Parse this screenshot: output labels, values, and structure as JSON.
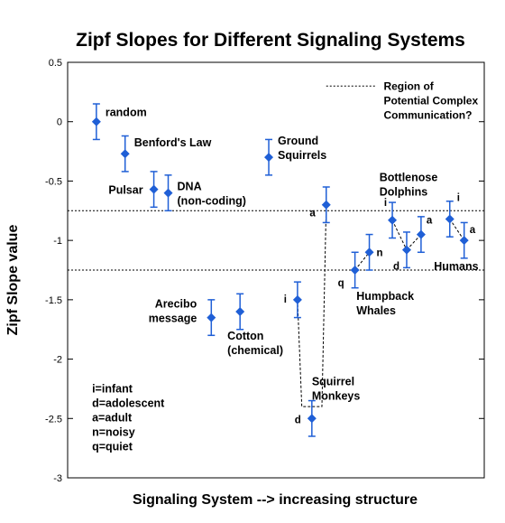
{
  "chart_data": {
    "type": "scatter",
    "title": "Zipf Slopes for Different Signaling Systems",
    "xlabel": "Signaling System --> increasing structure",
    "ylabel": "Zipf Slope value",
    "ylim": [
      -3,
      0.5
    ],
    "yticks": [
      "0.5",
      "0",
      "-0.5",
      "-1",
      "-1.5",
      "-2",
      "-2.5",
      "-3"
    ],
    "grid": false,
    "points": [
      {
        "x": 1,
        "y": 0,
        "err": 0.15,
        "label": "random",
        "label2": ""
      },
      {
        "x": 2,
        "y": -0.27,
        "err": 0.15,
        "label": "Benford's Law",
        "label2": ""
      },
      {
        "x": 3,
        "y": -0.57,
        "err": 0.15,
        "label": "Pulsar",
        "label2": ""
      },
      {
        "x": 3.5,
        "y": -0.6,
        "err": 0.15,
        "label": "DNA",
        "label2": "(non-coding)"
      },
      {
        "x": 5,
        "y": -1.65,
        "err": 0.15,
        "label": "Arecibo",
        "label2": "message"
      },
      {
        "x": 6,
        "y": -1.6,
        "err": 0.15,
        "label": "Cotton",
        "label2": "(chemical)"
      },
      {
        "x": 7,
        "y": -0.3,
        "err": 0.15,
        "label": "Ground",
        "label2": "Squirrels"
      },
      {
        "x": 8,
        "y": -1.5,
        "err": 0.15,
        "label": "i",
        "label2": ""
      },
      {
        "x": 8.5,
        "y": -2.5,
        "err": 0.15,
        "label": "d",
        "label2": ""
      },
      {
        "x": 9,
        "y": -0.7,
        "err": 0.15,
        "label": "a",
        "label2": ""
      },
      {
        "x": 10,
        "y": -1.25,
        "err": 0.15,
        "label": "q",
        "label2": ""
      },
      {
        "x": 10.5,
        "y": -1.1,
        "err": 0.15,
        "label": "n",
        "label2": ""
      },
      {
        "x": 11.3,
        "y": -0.83,
        "err": 0.15,
        "label": "i",
        "label2": ""
      },
      {
        "x": 11.8,
        "y": -1.08,
        "err": 0.15,
        "label": "d",
        "label2": ""
      },
      {
        "x": 12.3,
        "y": -0.95,
        "err": 0.15,
        "label": "a",
        "label2": ""
      },
      {
        "x": 13.3,
        "y": -0.82,
        "err": 0.15,
        "label": "i",
        "label2": ""
      },
      {
        "x": 13.8,
        "y": -1.0,
        "err": 0.15,
        "label": "a",
        "label2": ""
      }
    ],
    "groups": [
      {
        "label": "Squirrel",
        "label2": "Monkeys"
      },
      {
        "label": "Humpback",
        "label2": "Whales"
      },
      {
        "label": "Bottlenose",
        "label2": "Dolphins"
      },
      {
        "label": "Humans",
        "label2": ""
      }
    ],
    "region_label": [
      "Region of",
      "Potential Complex",
      "Communication?"
    ],
    "region_bounds": [
      -0.75,
      -1.25
    ],
    "legend_notes": [
      "i=infant",
      "d=adolescent",
      "a=adult",
      "n=noisy",
      "q=quiet"
    ],
    "point_color": "#1f5fd6"
  }
}
